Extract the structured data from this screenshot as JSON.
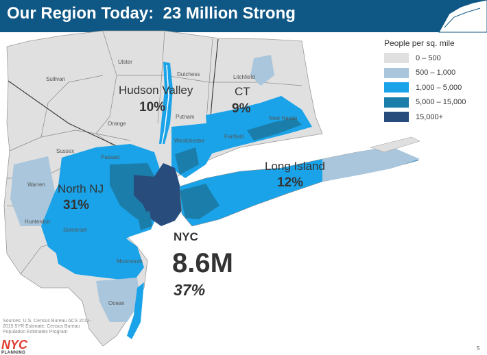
{
  "header": {
    "title": "Our Region Today:  23 Million Strong"
  },
  "legend": {
    "title": "People per sq. mile",
    "items": [
      {
        "label": "0 – 500",
        "color": "#e0e0e0"
      },
      {
        "label": "500 – 1,000",
        "color": "#a9c6dc"
      },
      {
        "label": "1,000 – 5,000",
        "color": "#1aa3e8"
      },
      {
        "label": "5,000 – 15,000",
        "color": "#1b7eaa"
      },
      {
        "label": "15,000+",
        "color": "#284d7d"
      }
    ]
  },
  "regions": {
    "hudson_valley": {
      "name": "Hudson Valley",
      "pct": "10%"
    },
    "ct": {
      "name": "CT",
      "pct": "9%"
    },
    "long_island": {
      "name": "Long Island",
      "pct": "12%"
    },
    "north_nj": {
      "name": "North NJ",
      "pct": "31%"
    },
    "nyc": {
      "name": "NYC",
      "population": "8.6M",
      "pct": "37%"
    }
  },
  "counties": {
    "ulster": "Ulster",
    "sullivan": "Sullivan",
    "dutchess": "Dutchess",
    "litchfield": "Litchfield",
    "orange": "Orange",
    "putnam": "Putnam",
    "westchester": "Westchester",
    "fairfield": "Fairfield",
    "new_haven": "New Haven",
    "sussex": "Sussex",
    "passaic": "Passaic",
    "warren": "Warren",
    "hunterdon": "Hunterdon",
    "somerset": "Somerset",
    "monmouth": "Monmouth",
    "ocean": "Ocean"
  },
  "sources": "Sources: U.S. Census Bureau ACS 2011-2015 5YR Estimate; Census Bureau Population Estimates Program",
  "logo": {
    "top": "NYC",
    "bottom": "PLANNING"
  },
  "page_number": "5"
}
